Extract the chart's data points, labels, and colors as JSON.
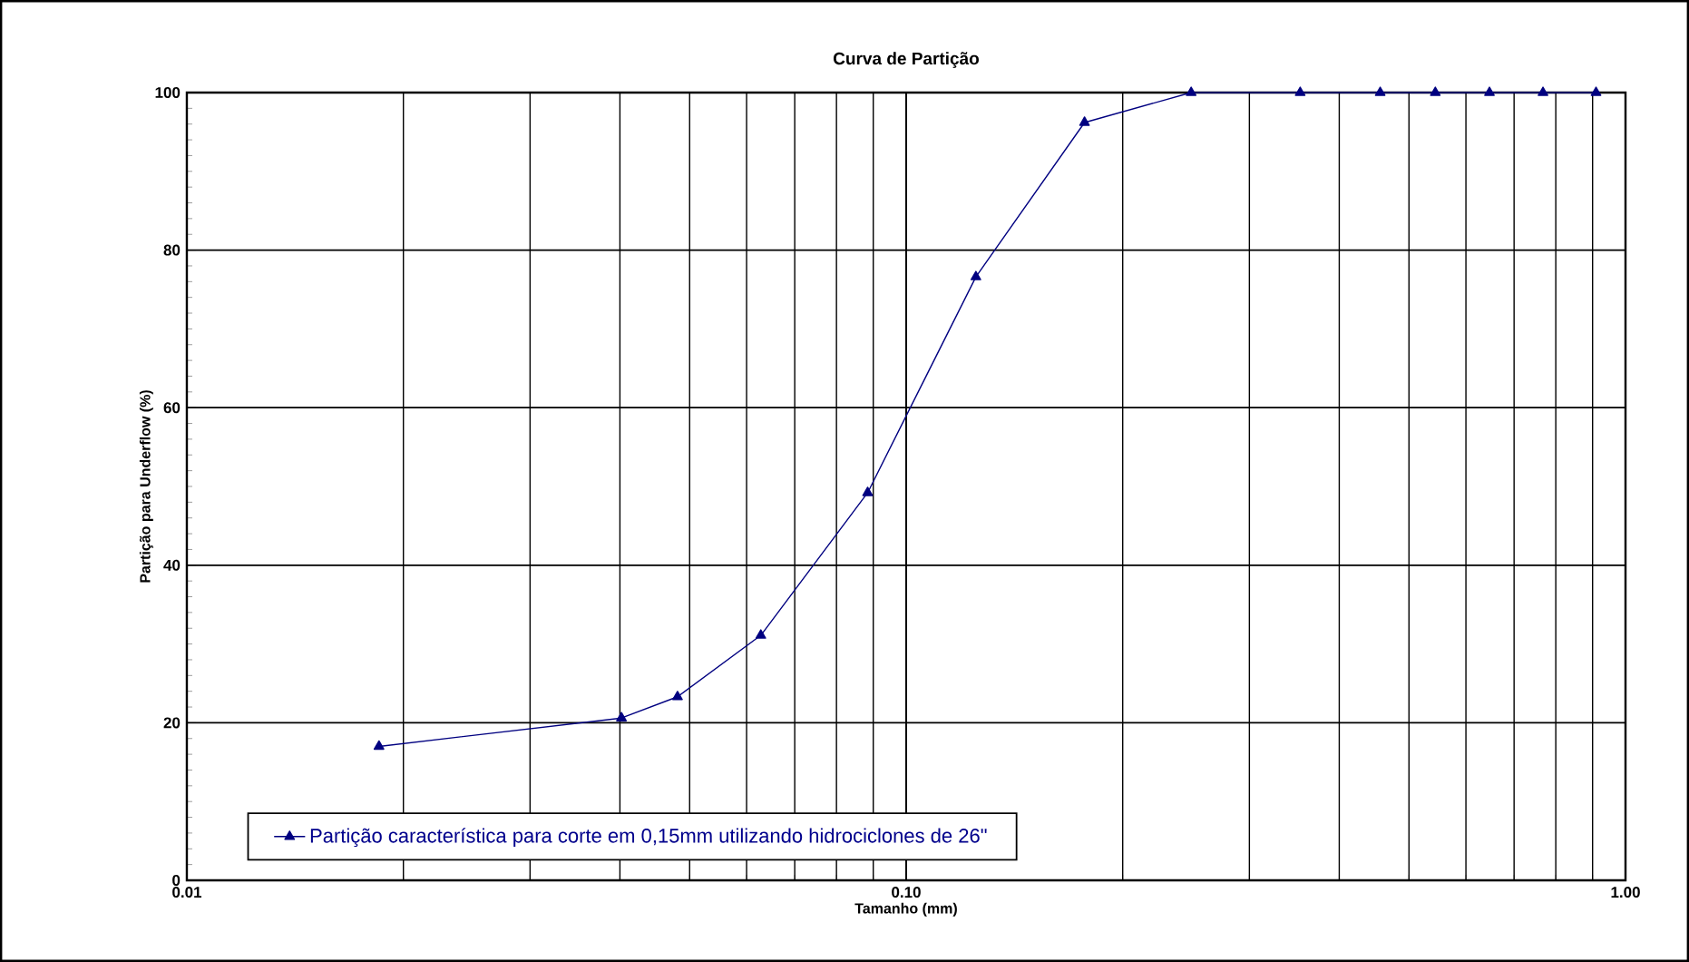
{
  "chart_data": {
    "type": "line",
    "title": "Curva de Partição",
    "xlabel": "Tamanho (mm)",
    "ylabel": "Partição para Underflow (%)",
    "x": [
      0.0185,
      0.0402,
      0.0481,
      0.0628,
      0.0884,
      0.125,
      0.177,
      0.249,
      0.353,
      0.456,
      0.544,
      0.647,
      0.768,
      0.91
    ],
    "series": [
      {
        "name": "Partição característica para corte em 0,15mm utilizando hidrociclones de 26\"",
        "color": "#000080",
        "values": [
          17.0,
          20.6,
          23.3,
          31.1,
          49.2,
          76.6,
          96.2,
          100,
          100,
          100,
          100,
          100,
          100,
          100
        ]
      }
    ],
    "xlim": [
      0.01,
      1
    ],
    "ylim": [
      0,
      100
    ],
    "xticks": [
      0.01,
      {
        "value": 0.1,
        "label": "0.10"
      },
      {
        "value": 1,
        "label": "1.00"
      }
    ],
    "yticks": [
      0,
      20,
      40,
      60,
      80,
      100
    ],
    "log": "x",
    "grid": true,
    "legend": "bottom left",
    "marker": "triangle",
    "line_style": "solid"
  }
}
